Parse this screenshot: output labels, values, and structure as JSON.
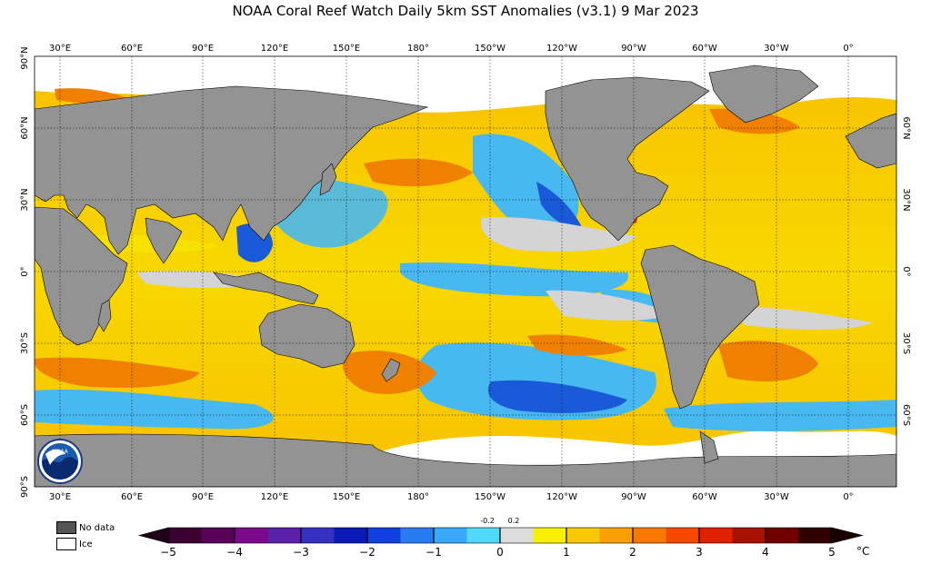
{
  "title": "NOAA Coral Reef Watch Daily 5km SST Anomalies  (v3.1)   9 Mar 2023",
  "axes": {
    "lon_labels": [
      "30°E",
      "60°E",
      "90°E",
      "120°E",
      "150°E",
      "180°",
      "150°W",
      "120°W",
      "90°W",
      "60°W",
      "30°W",
      "0°"
    ],
    "lat_labels_left": [
      "90°N",
      "60°N",
      "30°N",
      "0°",
      "30°S",
      "60°S",
      "90°S"
    ],
    "lat_labels_right": [
      "60°N",
      "30°N",
      "0°",
      "30°S",
      "60°S"
    ]
  },
  "legend": {
    "no_data": "No data",
    "ice": "Ice",
    "no_data_color": "#555555",
    "ice_color": "#ffffff"
  },
  "colorbar": {
    "ticks": [
      "−5",
      "−4",
      "−3",
      "−2",
      "−1",
      "0",
      "1",
      "2",
      "3",
      "4",
      "5"
    ],
    "small_ticks": [
      "-0.2",
      "0.2"
    ],
    "unit": "°C",
    "colors": [
      "#3b0030",
      "#5a005a",
      "#7a0a8a",
      "#5a20a8",
      "#3430c0",
      "#0a1ab8",
      "#1040e0",
      "#2a7af0",
      "#3aa8f8",
      "#50d8f8",
      "#dcdcdc",
      "#f8f000",
      "#f8c800",
      "#f8a000",
      "#f87800",
      "#f84800",
      "#e02000",
      "#a81000",
      "#700000",
      "#300000"
    ]
  },
  "badge": {
    "text": "NOAA"
  },
  "colors": {
    "land": "#939393",
    "warm": "#f8c400",
    "warmer": "#f08000",
    "hot": "#e03000",
    "cool": "#48b8f0",
    "cold": "#1a5ad8",
    "neutral": "#d4d4d4",
    "yellow": "#f8e000"
  }
}
